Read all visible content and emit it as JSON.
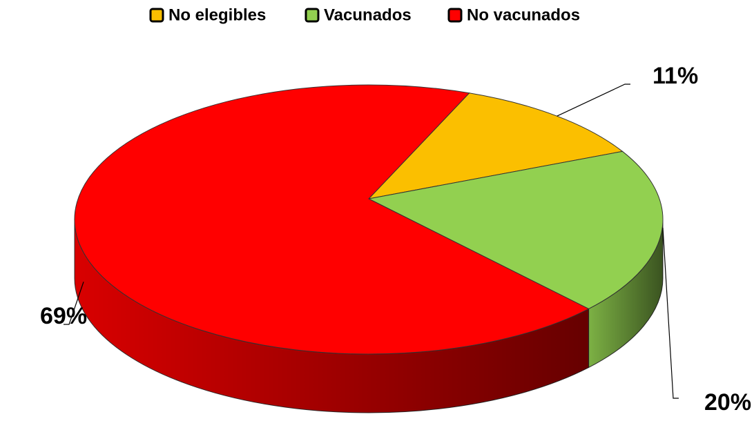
{
  "chart_data": {
    "type": "pie",
    "categories": [
      "No elegibles",
      "Vacunados",
      "No vacunados"
    ],
    "values": [
      11,
      20,
      69
    ],
    "value_labels": [
      "11%",
      "20%",
      "69%"
    ],
    "colors": [
      "#fbbf00",
      "#92d050",
      "#ff0000"
    ],
    "legend": "top"
  }
}
